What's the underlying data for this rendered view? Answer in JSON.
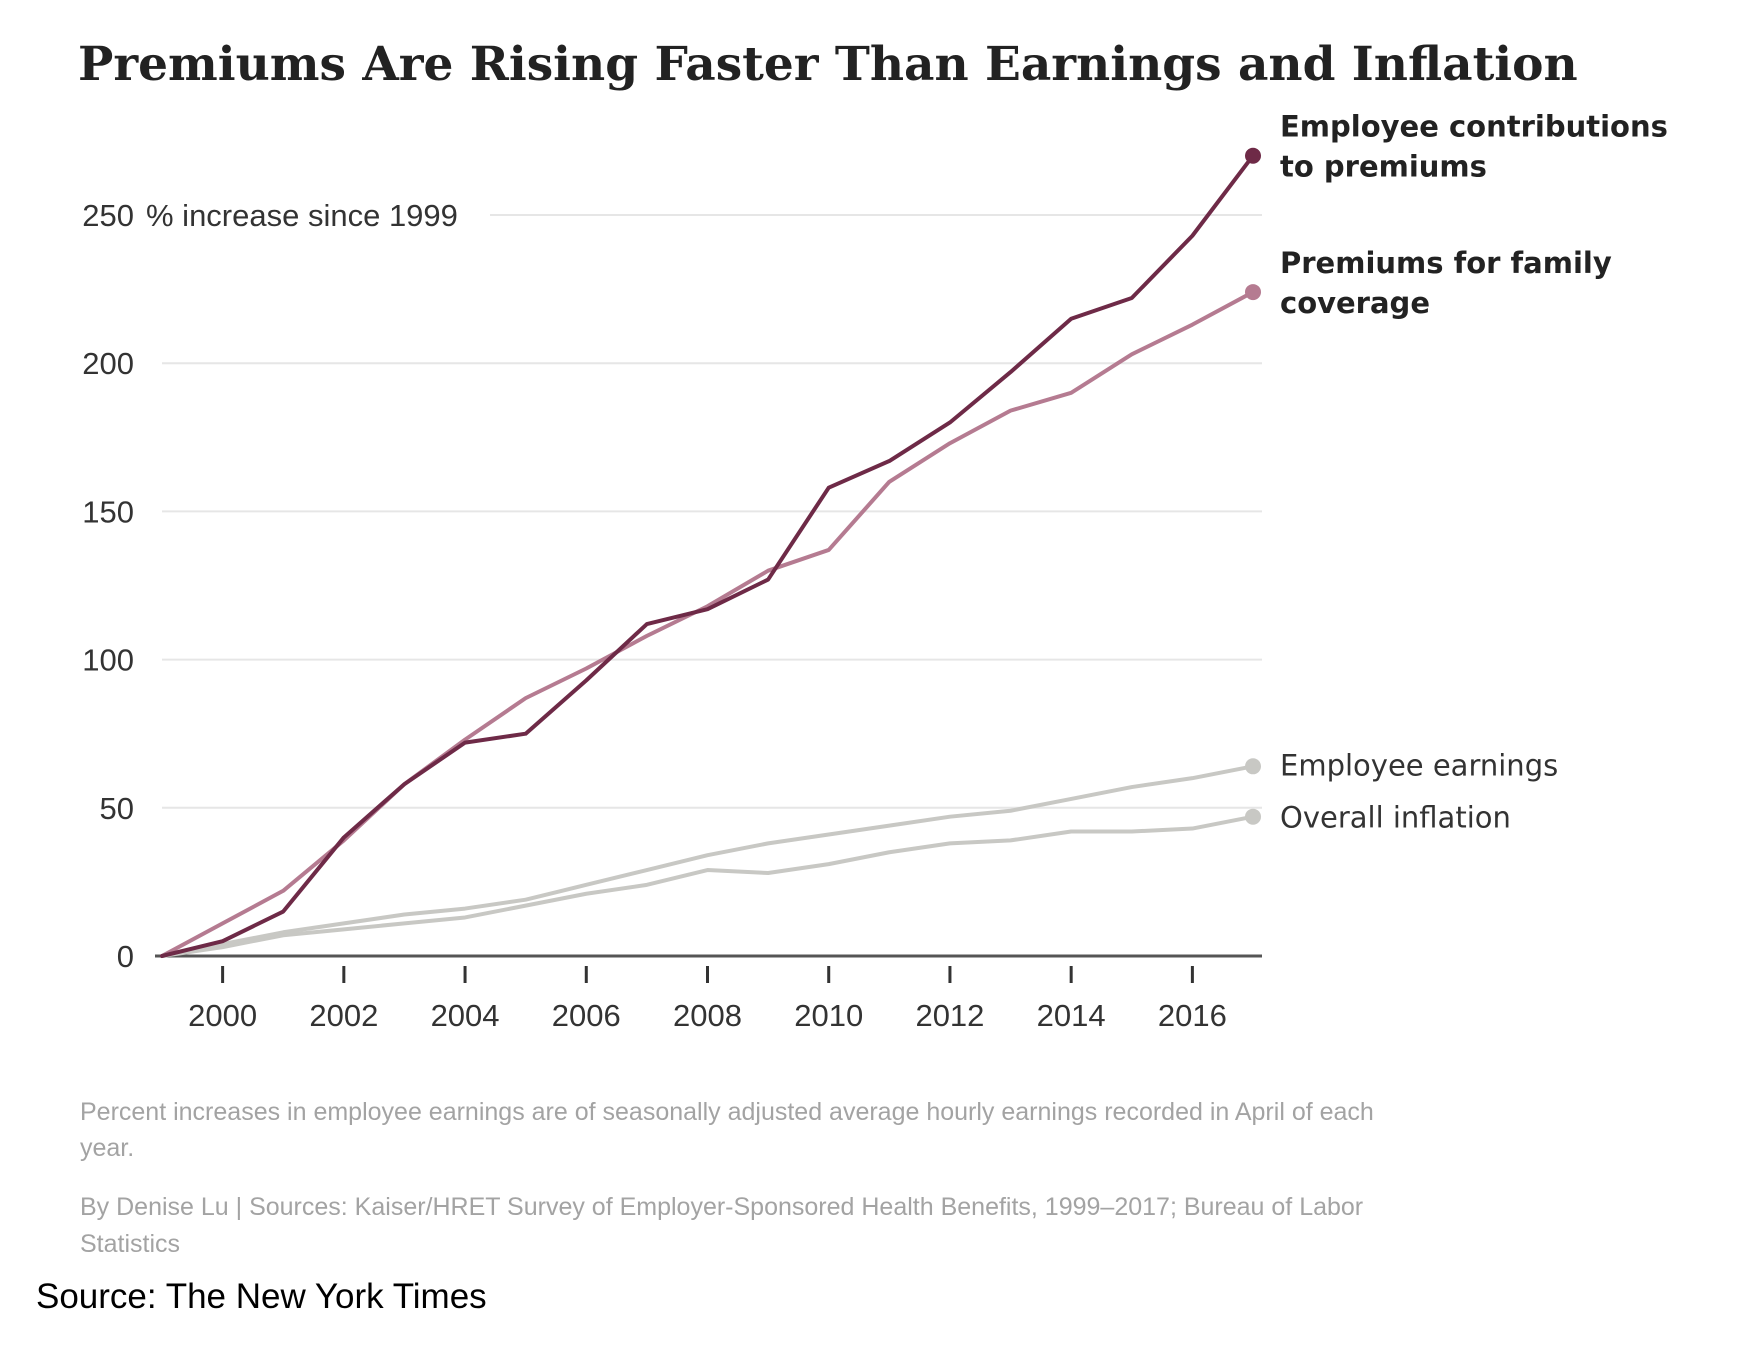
{
  "chart_data": {
    "type": "line",
    "title": "Premiums Are Rising Faster Than Earnings and Inflation",
    "ylabel": "% increase since 1999",
    "xlabel": "",
    "x": [
      1999,
      2000,
      2001,
      2002,
      2003,
      2004,
      2005,
      2006,
      2007,
      2008,
      2009,
      2010,
      2011,
      2012,
      2013,
      2014,
      2015,
      2016,
      2017
    ],
    "xlim": [
      1999,
      2017
    ],
    "ylim": [
      0,
      250
    ],
    "xticks": [
      2000,
      2002,
      2004,
      2006,
      2008,
      2010,
      2012,
      2014,
      2016
    ],
    "yticks": [
      0,
      50,
      100,
      150,
      200,
      250
    ],
    "ytick_labels": [
      "0",
      "50",
      "100",
      "150",
      "200",
      "250"
    ],
    "grid": "horizontal",
    "series": [
      {
        "name": "Employee contributions to premiums",
        "color": "#6e2a47",
        "emphasis": "bold",
        "values": [
          0,
          5,
          15,
          40,
          58,
          72,
          75,
          93,
          112,
          117,
          127,
          158,
          167,
          180,
          197,
          215,
          222,
          243,
          270
        ]
      },
      {
        "name": "Premiums for family coverage",
        "color": "#b57b91",
        "emphasis": "bold",
        "values": [
          0,
          11,
          22,
          39,
          58,
          73,
          87,
          97,
          108,
          118,
          130,
          137,
          160,
          173,
          184,
          190,
          203,
          213,
          224
        ]
      },
      {
        "name": "Employee earnings",
        "color": "#c8c8c4",
        "emphasis": "normal",
        "values": [
          0,
          4,
          8,
          11,
          14,
          16,
          19,
          24,
          29,
          34,
          38,
          41,
          44,
          47,
          49,
          53,
          57,
          60,
          64
        ]
      },
      {
        "name": "Overall inflation",
        "color": "#c8c8c4",
        "emphasis": "normal",
        "values": [
          0,
          3,
          7,
          9,
          11,
          13,
          17,
          21,
          24,
          29,
          28,
          31,
          35,
          38,
          39,
          42,
          42,
          43,
          47
        ]
      }
    ],
    "series_label_lines": [
      [
        "Employee contributions",
        "to premiums"
      ],
      [
        "Premiums for family",
        "coverage"
      ],
      [
        "Employee earnings"
      ],
      [
        "Overall inflation"
      ]
    ]
  },
  "notes": {
    "footnote_lines": [
      "Percent increases in employee earnings are of seasonally adjusted average hourly earnings recorded in April of each",
      "year."
    ],
    "credit_lines": [
      "By Denise Lu | Sources: Kaiser/HRET Survey of Employer-Sponsored Health Benefits, 1999–2017; Bureau of Labor",
      "Statistics"
    ],
    "source": "Source: The New York Times"
  },
  "colors": {
    "gridline": "#e6e6e6",
    "axis": "#555555",
    "tick": "#333333"
  }
}
